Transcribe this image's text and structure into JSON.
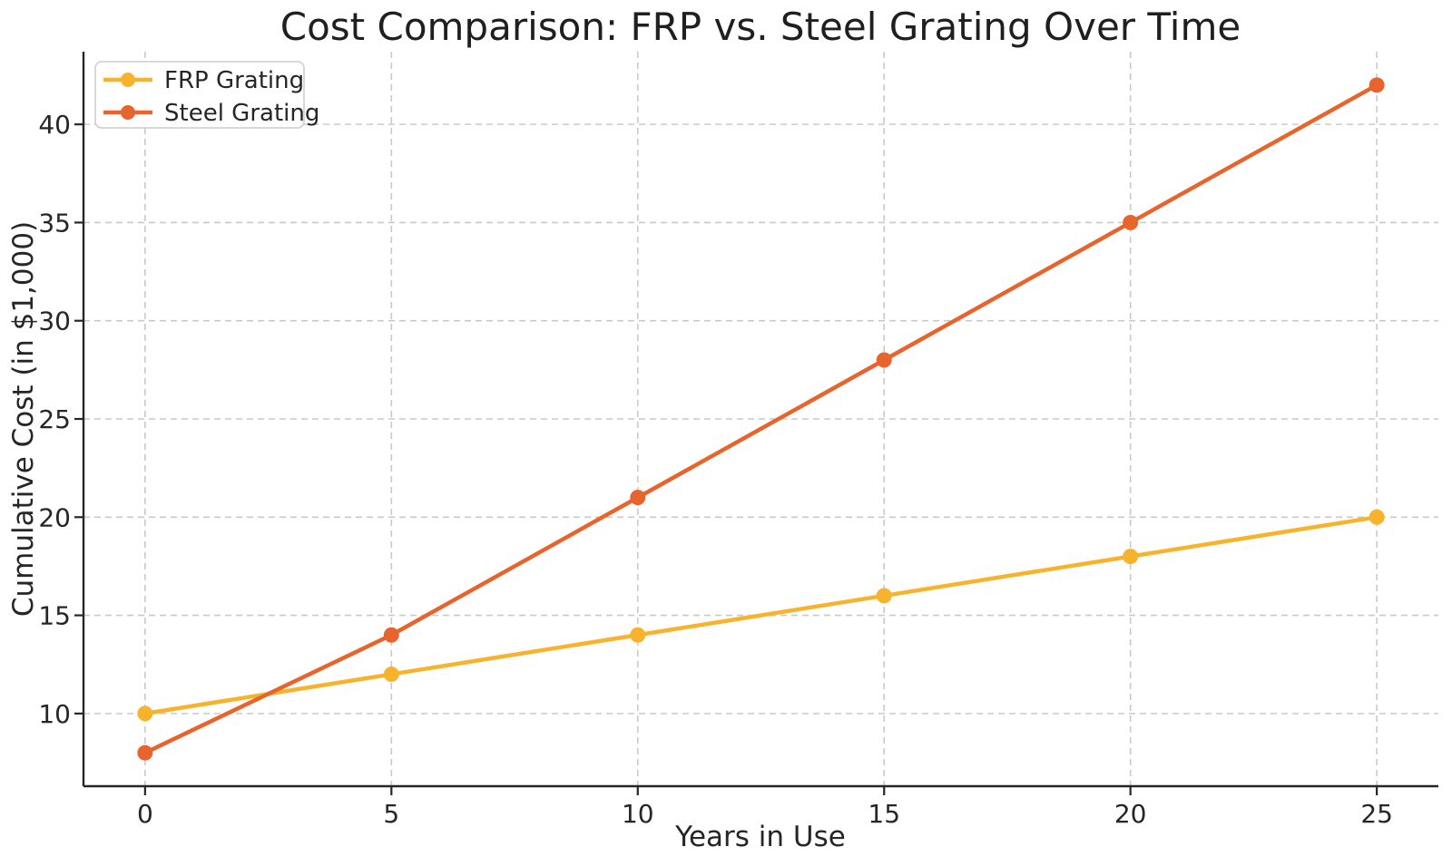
{
  "chart_data": {
    "type": "line",
    "title": "Cost Comparison: FRP vs. Steel Grating Over Time",
    "xlabel": "Years in Use",
    "ylabel": "Cumulative Cost (in $1,000)",
    "x": [
      0,
      5,
      10,
      15,
      20,
      25
    ],
    "series": [
      {
        "name": "FRP Grating",
        "color": "#F8B32C",
        "values": [
          10,
          12,
          14,
          16,
          18,
          20
        ]
      },
      {
        "name": "Steel Grating",
        "color": "#E8642D",
        "values": [
          8,
          14,
          21,
          28,
          35,
          42
        ]
      }
    ],
    "xticks": [
      "0",
      "5",
      "10",
      "15",
      "20",
      "25"
    ],
    "xtick_values": [
      0,
      5,
      10,
      15,
      20,
      25
    ],
    "yticks": [
      "10",
      "15",
      "20",
      "25",
      "30",
      "35",
      "40"
    ],
    "ytick_values": [
      10,
      15,
      20,
      25,
      30,
      35,
      40
    ],
    "xlim": [
      -1.25,
      26.25
    ],
    "ylim": [
      6.3,
      43.7
    ],
    "grid": true,
    "grid_style": "dashed",
    "legend_position": "upper left",
    "marker": "circle",
    "style": {
      "grid_color": "#c9c9c9",
      "spine_color": "#262626",
      "text_color": "#262626",
      "legend_border": "#cccccc",
      "background": "#ffffff"
    }
  }
}
